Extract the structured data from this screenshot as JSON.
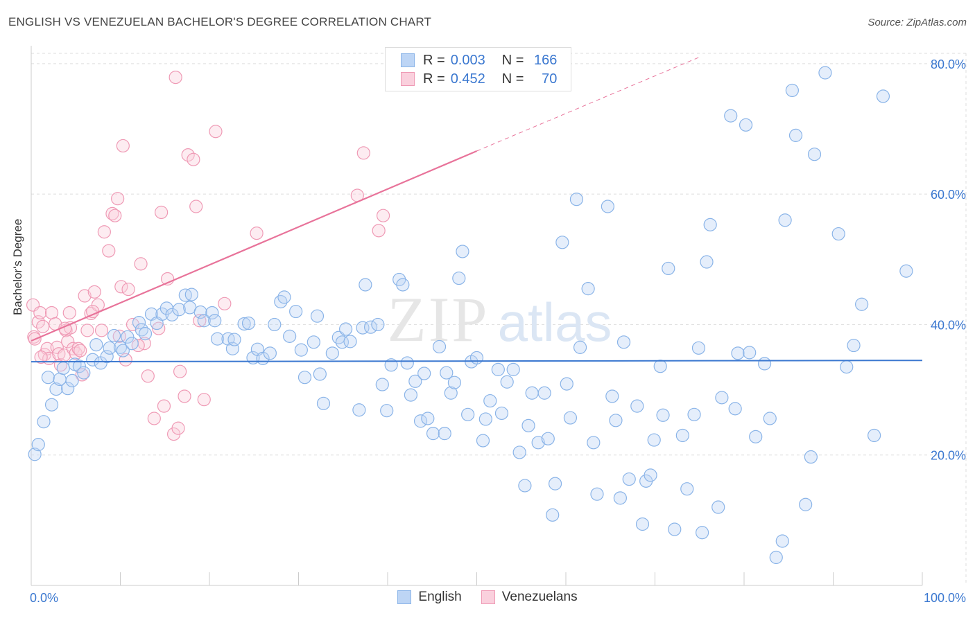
{
  "header": {
    "title": "ENGLISH VS VENEZUELAN BACHELOR'S DEGREE CORRELATION CHART",
    "source": "Source: ZipAtlas.com"
  },
  "watermark": {
    "zip": "ZIP",
    "atlas": "atlas"
  },
  "stats": {
    "rows": [
      {
        "r_label": "R =",
        "r_value": "0.003",
        "n_label": "N =",
        "n_value": "166",
        "color": "#8ab4e8",
        "fill": "#bdd5f5"
      },
      {
        "r_label": "R =",
        "r_value": "0.452",
        "n_label": "N =",
        "n_value": "70",
        "color": "#ef9ab5",
        "fill": "#fad0dd"
      }
    ]
  },
  "legend": {
    "items": [
      {
        "label": "English",
        "color": "#8ab4e8",
        "fill": "#bdd5f5"
      },
      {
        "label": "Venezuelans",
        "color": "#ef9ab5",
        "fill": "#fad0dd"
      }
    ]
  },
  "chart_data": {
    "type": "scatter",
    "title": "ENGLISH VS VENEZUELAN BACHELOR'S DEGREE CORRELATION CHART",
    "xlabel": "",
    "ylabel": "Bachelor's Degree",
    "xlim": [
      0,
      100
    ],
    "ylim": [
      0,
      82
    ],
    "x_tick_labels": [
      {
        "value": 0,
        "label": "0.0%"
      },
      {
        "value": 100,
        "label": "100.0%"
      }
    ],
    "y_tick_labels": [
      {
        "value": 20,
        "label": "20.0%"
      },
      {
        "value": 40,
        "label": "40.0%"
      },
      {
        "value": 60,
        "label": "60.0%"
      },
      {
        "value": 80,
        "label": "80.0%"
      }
    ],
    "grid": true,
    "colors": {
      "english_edge": "#8ab4e8",
      "english_fill": "#bdd5f566",
      "venezuelan_edge": "#ef9ab5",
      "venezuelan_fill": "#fad0dd66",
      "english_line": "#3b78d0",
      "venezuelan_line": "#e8739a",
      "grid": "#dddddd",
      "axis_text": "#3b78d0"
    },
    "series": [
      {
        "name": "English",
        "trend": {
          "x": [
            0,
            100
          ],
          "y": [
            34.3,
            34.5
          ]
        },
        "points": [
          [
            0.4,
            20.1
          ],
          [
            0.8,
            21.6
          ],
          [
            1.4,
            25.1
          ],
          [
            1.9,
            31.9
          ],
          [
            2.3,
            27.7
          ],
          [
            2.8,
            30.1
          ],
          [
            3.2,
            31.6
          ],
          [
            3.6,
            33.3
          ],
          [
            4.1,
            30.2
          ],
          [
            4.6,
            31.4
          ],
          [
            4.9,
            33.9
          ],
          [
            5.4,
            33.6
          ],
          [
            5.9,
            32.6
          ],
          [
            6.9,
            34.6
          ],
          [
            7.3,
            36.9
          ],
          [
            7.8,
            34.1
          ],
          [
            8.5,
            35.1
          ],
          [
            8.8,
            36.4
          ],
          [
            9.3,
            38.3
          ],
          [
            10.0,
            36.5
          ],
          [
            10.3,
            36.0
          ],
          [
            10.8,
            38.1
          ],
          [
            11.3,
            37.1
          ],
          [
            12.1,
            40.3
          ],
          [
            12.4,
            39.2
          ],
          [
            12.8,
            38.6
          ],
          [
            13.5,
            41.6
          ],
          [
            14.1,
            40.2
          ],
          [
            14.7,
            41.6
          ],
          [
            15.2,
            42.5
          ],
          [
            15.8,
            41.5
          ],
          [
            16.6,
            42.3
          ],
          [
            17.3,
            44.5
          ],
          [
            17.8,
            42.6
          ],
          [
            18.0,
            44.6
          ],
          [
            19.0,
            41.9
          ],
          [
            19.4,
            40.6
          ],
          [
            20.3,
            41.8
          ],
          [
            20.6,
            40.6
          ],
          [
            20.9,
            37.8
          ],
          [
            22.1,
            37.8
          ],
          [
            22.6,
            36.3
          ],
          [
            22.8,
            37.7
          ],
          [
            23.9,
            40.1
          ],
          [
            24.4,
            40.2
          ],
          [
            24.9,
            34.9
          ],
          [
            25.4,
            36.2
          ],
          [
            26.0,
            34.8
          ],
          [
            26.8,
            35.6
          ],
          [
            27.3,
            40.0
          ],
          [
            28.0,
            43.5
          ],
          [
            28.4,
            44.2
          ],
          [
            29.0,
            38.2
          ],
          [
            29.7,
            42.0
          ],
          [
            30.3,
            36.1
          ],
          [
            30.7,
            31.9
          ],
          [
            31.7,
            37.3
          ],
          [
            32.1,
            41.3
          ],
          [
            32.4,
            32.4
          ],
          [
            32.8,
            27.9
          ],
          [
            33.8,
            35.6
          ],
          [
            34.5,
            38.0
          ],
          [
            34.9,
            37.3
          ],
          [
            35.3,
            39.3
          ],
          [
            35.8,
            37.4
          ],
          [
            36.8,
            26.9
          ],
          [
            37.2,
            39.5
          ],
          [
            37.5,
            46.1
          ],
          [
            38.1,
            39.6
          ],
          [
            38.9,
            40.0
          ],
          [
            39.4,
            30.8
          ],
          [
            39.9,
            26.8
          ],
          [
            40.4,
            33.8
          ],
          [
            41.3,
            46.9
          ],
          [
            41.7,
            46.1
          ],
          [
            42.2,
            34.1
          ],
          [
            42.6,
            29.2
          ],
          [
            43.1,
            31.3
          ],
          [
            43.7,
            25.2
          ],
          [
            44.1,
            32.5
          ],
          [
            44.5,
            25.6
          ],
          [
            45.1,
            23.3
          ],
          [
            45.8,
            36.6
          ],
          [
            46.4,
            23.3
          ],
          [
            46.6,
            32.6
          ],
          [
            47.1,
            29.5
          ],
          [
            47.5,
            31.1
          ],
          [
            48.0,
            47.1
          ],
          [
            48.4,
            51.2
          ],
          [
            49.0,
            26.2
          ],
          [
            49.4,
            34.3
          ],
          [
            50.0,
            34.9
          ],
          [
            50.7,
            22.2
          ],
          [
            51.0,
            25.5
          ],
          [
            51.5,
            28.3
          ],
          [
            52.4,
            33.1
          ],
          [
            52.8,
            26.4
          ],
          [
            53.4,
            31.2
          ],
          [
            54.1,
            33.1
          ],
          [
            54.8,
            20.4
          ],
          [
            55.4,
            15.3
          ],
          [
            55.8,
            24.5
          ],
          [
            56.2,
            29.5
          ],
          [
            56.9,
            21.9
          ],
          [
            57.6,
            29.5
          ],
          [
            58.0,
            22.5
          ],
          [
            58.5,
            10.8
          ],
          [
            58.8,
            15.6
          ],
          [
            59.6,
            52.6
          ],
          [
            60.1,
            30.9
          ],
          [
            60.5,
            25.7
          ],
          [
            61.2,
            59.2
          ],
          [
            61.6,
            36.5
          ],
          [
            62.5,
            45.5
          ],
          [
            63.1,
            21.9
          ],
          [
            63.5,
            14.0
          ],
          [
            64.7,
            58.1
          ],
          [
            65.2,
            29.0
          ],
          [
            65.6,
            25.3
          ],
          [
            66.1,
            13.4
          ],
          [
            66.5,
            37.3
          ],
          [
            67.1,
            16.3
          ],
          [
            68.0,
            27.5
          ],
          [
            68.6,
            9.4
          ],
          [
            69.0,
            16.0
          ],
          [
            69.5,
            16.9
          ],
          [
            69.9,
            22.3
          ],
          [
            70.6,
            33.6
          ],
          [
            70.9,
            26.1
          ],
          [
            71.5,
            48.6
          ],
          [
            72.2,
            8.6
          ],
          [
            73.1,
            23.0
          ],
          [
            73.6,
            14.8
          ],
          [
            74.4,
            26.2
          ],
          [
            74.9,
            36.4
          ],
          [
            75.3,
            8.1
          ],
          [
            75.8,
            49.6
          ],
          [
            76.2,
            55.3
          ],
          [
            77.1,
            12.0
          ],
          [
            77.5,
            28.8
          ],
          [
            78.5,
            72.0
          ],
          [
            79.0,
            27.1
          ],
          [
            79.3,
            35.6
          ],
          [
            80.2,
            70.6
          ],
          [
            80.6,
            35.7
          ],
          [
            81.3,
            22.8
          ],
          [
            82.3,
            34.0
          ],
          [
            82.9,
            25.6
          ],
          [
            83.6,
            4.3
          ],
          [
            84.3,
            6.8
          ],
          [
            84.6,
            56.0
          ],
          [
            85.4,
            75.9
          ],
          [
            85.8,
            69.0
          ],
          [
            86.9,
            12.4
          ],
          [
            87.5,
            19.7
          ],
          [
            87.9,
            66.1
          ],
          [
            89.1,
            78.6
          ],
          [
            90.6,
            53.9
          ],
          [
            91.5,
            33.5
          ],
          [
            92.3,
            36.8
          ],
          [
            93.2,
            43.1
          ],
          [
            94.6,
            23.0
          ],
          [
            95.6,
            75.0
          ],
          [
            98.2,
            48.2
          ]
        ]
      },
      {
        "name": "Venezuelans",
        "trend": {
          "x": [
            0,
            50,
            75
          ],
          "y": [
            37.5,
            66.6,
            81.0
          ],
          "solid_until_x": 50
        },
        "points": [
          [
            0.2,
            43.0
          ],
          [
            0.3,
            38.1
          ],
          [
            0.8,
            40.4
          ],
          [
            1.0,
            41.8
          ],
          [
            1.3,
            39.7
          ],
          [
            1.5,
            35.4
          ],
          [
            1.8,
            36.3
          ],
          [
            2.0,
            34.8
          ],
          [
            2.3,
            41.8
          ],
          [
            2.7,
            40.1
          ],
          [
            2.9,
            36.5
          ],
          [
            3.1,
            35.5
          ],
          [
            3.3,
            33.8
          ],
          [
            3.7,
            35.3
          ],
          [
            3.9,
            39.1
          ],
          [
            4.1,
            37.4
          ],
          [
            4.3,
            41.8
          ],
          [
            4.4,
            39.5
          ],
          [
            4.7,
            36.3
          ],
          [
            5.0,
            35.6
          ],
          [
            5.3,
            36.3
          ],
          [
            5.5,
            36.0
          ],
          [
            5.7,
            32.3
          ],
          [
            6.0,
            44.4
          ],
          [
            6.3,
            39.1
          ],
          [
            6.7,
            41.7
          ],
          [
            7.1,
            45.0
          ],
          [
            7.5,
            43.0
          ],
          [
            7.9,
            39.1
          ],
          [
            8.2,
            54.2
          ],
          [
            8.7,
            51.3
          ],
          [
            9.1,
            57.0
          ],
          [
            9.4,
            56.7
          ],
          [
            9.7,
            59.3
          ],
          [
            9.9,
            38.2
          ],
          [
            10.1,
            45.8
          ],
          [
            10.3,
            67.4
          ],
          [
            10.9,
            45.4
          ],
          [
            11.4,
            40.0
          ],
          [
            12.3,
            49.3
          ],
          [
            12.7,
            37.1
          ],
          [
            13.1,
            32.1
          ],
          [
            13.8,
            25.6
          ],
          [
            14.3,
            39.4
          ],
          [
            14.6,
            57.2
          ],
          [
            14.9,
            27.5
          ],
          [
            15.3,
            47.0
          ],
          [
            16.0,
            23.2
          ],
          [
            16.2,
            77.9
          ],
          [
            16.5,
            24.1
          ],
          [
            16.7,
            32.8
          ],
          [
            17.2,
            29.0
          ],
          [
            17.6,
            66.0
          ],
          [
            18.2,
            65.3
          ],
          [
            18.5,
            58.1
          ],
          [
            18.9,
            40.6
          ],
          [
            19.4,
            28.5
          ],
          [
            20.7,
            69.6
          ],
          [
            21.7,
            43.2
          ],
          [
            25.3,
            54.0
          ],
          [
            36.6,
            59.8
          ],
          [
            37.3,
            66.3
          ],
          [
            39.0,
            54.4
          ],
          [
            39.5,
            56.7
          ],
          [
            0.4,
            37.8
          ],
          [
            1.1,
            35.0
          ],
          [
            3.8,
            39.4
          ],
          [
            6.9,
            42.0
          ],
          [
            10.6,
            34.6
          ],
          [
            12.0,
            36.8
          ]
        ]
      }
    ]
  }
}
